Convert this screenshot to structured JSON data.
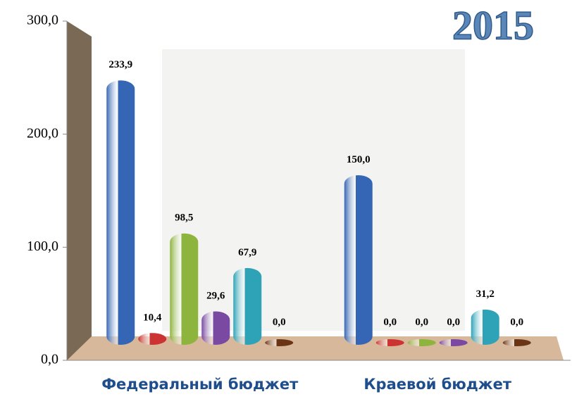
{
  "chart_data": {
    "type": "bar",
    "title": "2015",
    "categories": [
      "Федеральный бюджет",
      "Краевой бюджет"
    ],
    "series": [
      {
        "color": "#3566b5",
        "values": [
          233.9,
          150.0
        ],
        "value_labels": [
          "233,9",
          "150,0"
        ]
      },
      {
        "color": "#cc3333",
        "values": [
          10.4,
          0.0
        ],
        "value_labels": [
          "10,4",
          "0,0"
        ]
      },
      {
        "color": "#8db43c",
        "values": [
          98.5,
          0.0
        ],
        "value_labels": [
          "98,5",
          "0,0"
        ]
      },
      {
        "color": "#7a4aa3",
        "values": [
          29.6,
          0.0
        ],
        "value_labels": [
          "29,6",
          "0,0"
        ]
      },
      {
        "color": "#2ea3b8",
        "values": [
          67.9,
          31.2
        ],
        "value_labels": [
          "67,9",
          "31,2"
        ]
      },
      {
        "color": "#6a3516",
        "values": [
          0.0,
          0.0
        ],
        "value_labels": [
          "0,0",
          "0,0"
        ]
      }
    ],
    "ylim": [
      0,
      300
    ],
    "yticks": [
      {
        "value": 0,
        "label": "0,0"
      },
      {
        "value": 100,
        "label": "100,0"
      },
      {
        "value": 200,
        "label": "200,0"
      },
      {
        "value": 300,
        "label": "300,0"
      }
    ]
  }
}
